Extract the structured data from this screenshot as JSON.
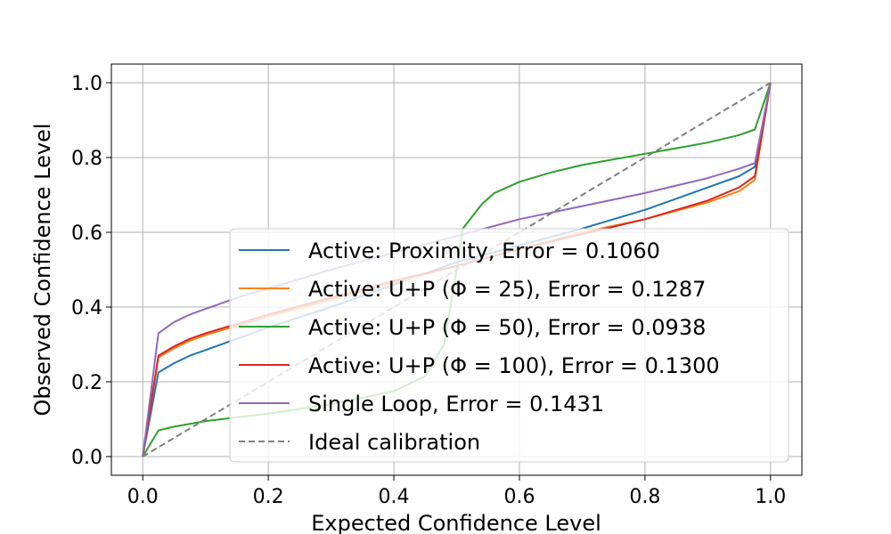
{
  "chart_data": {
    "type": "line",
    "xlabel": "Expected Confidence Level",
    "ylabel": "Observed Confidence Level",
    "xlim": [
      -0.05,
      1.05
    ],
    "ylim": [
      -0.05,
      1.05
    ],
    "x_ticks": [
      0.0,
      0.2,
      0.4,
      0.6,
      0.8,
      1.0
    ],
    "y_ticks": [
      0.0,
      0.2,
      0.4,
      0.6,
      0.8,
      1.0
    ],
    "x_tick_labels": [
      "0.0",
      "0.2",
      "0.4",
      "0.6",
      "0.8",
      "1.0"
    ],
    "y_tick_labels": [
      "0.0",
      "0.2",
      "0.4",
      "0.6",
      "0.8",
      "1.0"
    ],
    "grid": true,
    "legend_placement": "lower-right",
    "series": [
      {
        "name": "Active: Proximity, Error = 0.1060",
        "color": "#1f77b4",
        "dashed": false,
        "x": [
          0,
          0.025,
          0.05,
          0.075,
          0.1,
          0.15,
          0.2,
          0.3,
          0.4,
          0.5,
          0.6,
          0.7,
          0.8,
          0.9,
          0.95,
          0.975,
          1.0
        ],
        "y": [
          0,
          0.225,
          0.25,
          0.27,
          0.285,
          0.315,
          0.345,
          0.4,
          0.46,
          0.52,
          0.565,
          0.61,
          0.66,
          0.72,
          0.75,
          0.775,
          1.0
        ]
      },
      {
        "name": "Active: U+P (Φ = 25), Error = 0.1287",
        "color": "#ff7f0e",
        "dashed": false,
        "x": [
          0,
          0.025,
          0.05,
          0.075,
          0.1,
          0.15,
          0.2,
          0.3,
          0.4,
          0.5,
          0.6,
          0.7,
          0.8,
          0.9,
          0.95,
          0.975,
          1.0
        ],
        "y": [
          0,
          0.265,
          0.29,
          0.31,
          0.325,
          0.35,
          0.375,
          0.42,
          0.465,
          0.51,
          0.555,
          0.6,
          0.635,
          0.68,
          0.71,
          0.74,
          1.0
        ]
      },
      {
        "name": "Active: U+P (Φ = 50), Error = 0.0938",
        "color": "#2ca02c",
        "dashed": false,
        "x": [
          0,
          0.025,
          0.05,
          0.1,
          0.2,
          0.3,
          0.4,
          0.45,
          0.48,
          0.5,
          0.51,
          0.54,
          0.56,
          0.6,
          0.65,
          0.7,
          0.8,
          0.9,
          0.95,
          0.975,
          1.0
        ],
        "y": [
          0,
          0.07,
          0.08,
          0.095,
          0.115,
          0.14,
          0.175,
          0.215,
          0.3,
          0.5,
          0.61,
          0.675,
          0.705,
          0.735,
          0.76,
          0.78,
          0.81,
          0.84,
          0.86,
          0.875,
          1.0
        ]
      },
      {
        "name": "Active: U+P (Φ = 100), Error = 0.1300",
        "color": "#d62728",
        "dashed": false,
        "x": [
          0,
          0.025,
          0.05,
          0.075,
          0.1,
          0.15,
          0.2,
          0.3,
          0.4,
          0.5,
          0.6,
          0.7,
          0.8,
          0.9,
          0.95,
          0.975,
          1.0
        ],
        "y": [
          0,
          0.27,
          0.295,
          0.315,
          0.33,
          0.355,
          0.38,
          0.425,
          0.47,
          0.51,
          0.555,
          0.595,
          0.635,
          0.685,
          0.72,
          0.75,
          1.0
        ]
      },
      {
        "name": "Single Loop, Error = 0.1431",
        "color": "#9467bd",
        "dashed": false,
        "x": [
          0,
          0.025,
          0.05,
          0.075,
          0.1,
          0.15,
          0.2,
          0.3,
          0.4,
          0.5,
          0.6,
          0.7,
          0.8,
          0.9,
          0.95,
          0.975,
          1.0
        ],
        "y": [
          0,
          0.33,
          0.36,
          0.38,
          0.395,
          0.425,
          0.45,
          0.5,
          0.545,
          0.59,
          0.635,
          0.67,
          0.705,
          0.745,
          0.77,
          0.785,
          1.0
        ]
      },
      {
        "name": "Ideal calibration",
        "color": "#7f7f7f",
        "dashed": true,
        "x": [
          0,
          1
        ],
        "y": [
          0,
          1
        ]
      }
    ]
  }
}
